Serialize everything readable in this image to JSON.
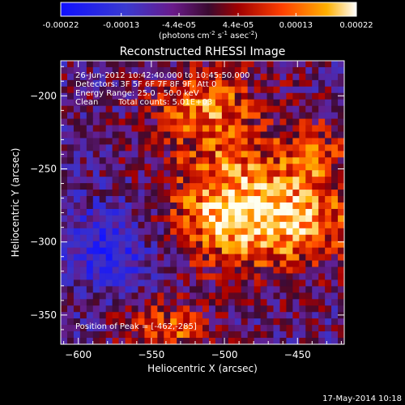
{
  "colorbar": {
    "ticks": [
      "-0.00022",
      "-0.00013",
      "-4.4e-05",
      "4.4e-05",
      "0.00013",
      "0.00022"
    ],
    "unit_prefix": "(photons cm",
    "unit_exp1": "-2",
    "unit_mid": " s",
    "unit_exp2": "-1",
    "unit_mid2": " asec",
    "unit_exp3": "-2",
    "unit_suffix": ")",
    "colormap": "blue-purple-red-yellow-white",
    "range": [
      -0.00022,
      0.00022
    ]
  },
  "info": {
    "line1": "26-Jun-2012 10:42:40.000 to 10:45:50.000",
    "line2": "Detectors: 3F 5F 6F 7F 8F 9F, Att 0",
    "line3": "Energy Range: 25.0 - 50.0 keV",
    "line4_a": "Clean",
    "line4_b": "Total counts: 5.01E+03",
    "peak": "Position of Peak = [-462,-285]"
  },
  "footer_date": "17-May-2014 10:18",
  "chart_data": {
    "type": "heatmap",
    "title": "Reconstructed RHESSI Image",
    "xlabel": "Heliocentric X (arcsec)",
    "ylabel": "Heliocentric Y (arcsec)",
    "xlim": [
      -612,
      -418
    ],
    "ylim": [
      -370,
      -176
    ],
    "xticks": [
      -600,
      -550,
      -500,
      -450
    ],
    "yticks": [
      -350,
      -300,
      -250,
      -200
    ],
    "xtick_labels": [
      "−600",
      "−550",
      "−500",
      "−450"
    ],
    "ytick_labels": [
      "−350",
      "−300",
      "−250",
      "−200"
    ],
    "peak_position": [
      -462,
      -285
    ],
    "colors": {
      "low": "#0000ff",
      "mid": "#6a1a8a",
      "high": "#ff2a00",
      "top": "#ffffff"
    }
  }
}
